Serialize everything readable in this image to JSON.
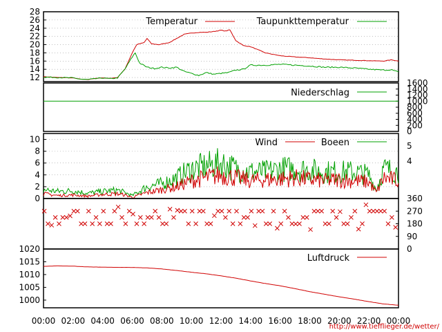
{
  "colors": {
    "red": "#d00000",
    "green": "#00a000",
    "grid": "#999999",
    "frame": "#000000"
  },
  "time_labels": [
    "00:00",
    "02:00",
    "04:00",
    "06:00",
    "08:00",
    "10:00",
    "12:00",
    "14:00",
    "16:00",
    "18:00",
    "20:00",
    "22:00",
    "00:00"
  ],
  "footer_url": "http://www.tiefflieger.de/wetter/",
  "chart_data": [
    {
      "id": "temperature",
      "type": "line",
      "x_unit": "hours",
      "xlim": [
        0,
        24
      ],
      "ylim": [
        11,
        28
      ],
      "y_ticks": [
        12,
        14,
        16,
        18,
        20,
        22,
        24,
        26,
        28
      ],
      "grid": true,
      "legend_position": "top",
      "series": [
        {
          "name": "Temperatur",
          "color": "#d00000",
          "x": [
            0,
            1,
            2,
            2.5,
            3,
            3.5,
            4,
            4.5,
            5,
            5.5,
            6,
            6.3,
            6.8,
            7,
            7.3,
            7.8,
            8.5,
            9,
            9.5,
            10,
            10.5,
            11,
            11.5,
            12,
            12.3,
            12.6,
            13,
            13.5,
            14,
            15,
            16,
            17,
            18,
            19,
            20,
            21,
            22,
            23,
            23.5,
            24
          ],
          "y": [
            12.2,
            12,
            11.9,
            11.6,
            11.5,
            11.8,
            11.9,
            11.8,
            12,
            14,
            18,
            20,
            20.5,
            21.5,
            20.2,
            20,
            20.5,
            21.5,
            22.5,
            22.8,
            23,
            23,
            23.2,
            23.5,
            23.3,
            23.6,
            21,
            19.8,
            19.5,
            18,
            17.3,
            17,
            16.8,
            16.5,
            16.3,
            16.2,
            16.1,
            16,
            16.3,
            16
          ]
        },
        {
          "name": "Taupunkttemperatur",
          "color": "#00a000",
          "x": [
            0,
            1,
            2,
            2.5,
            3,
            3.5,
            4,
            4.5,
            5,
            5.5,
            6,
            6.2,
            6.5,
            7,
            7.5,
            8,
            8.5,
            9,
            9.5,
            10,
            10.5,
            11,
            11.5,
            12,
            12.5,
            13,
            13.5,
            14,
            15,
            16,
            17,
            18,
            19,
            20,
            21,
            22,
            23,
            23.5,
            24
          ],
          "y": [
            12.1,
            12,
            11.9,
            11.6,
            11.5,
            11.7,
            11.9,
            11.7,
            11.9,
            14,
            17,
            18,
            15.5,
            14.5,
            14.2,
            14.5,
            14.3,
            14.5,
            13.5,
            13,
            12.5,
            13.2,
            12.8,
            13,
            13.2,
            13.8,
            14,
            15,
            15,
            15.2,
            15,
            14.8,
            14.5,
            14.5,
            14.3,
            14,
            13.8,
            13.9,
            13.3
          ]
        }
      ]
    },
    {
      "id": "precipitation",
      "type": "line",
      "xlim": [
        0,
        24
      ],
      "ylim": [
        0,
        1600
      ],
      "y_ticks": [
        0,
        200,
        400,
        600,
        800,
        1000,
        1200,
        1400,
        1600
      ],
      "y_axis_side": "right",
      "grid": false,
      "series": [
        {
          "name": "Niederschlag",
          "color": "#00a000",
          "x": [
            0,
            24
          ],
          "y": [
            1000,
            1000
          ]
        }
      ]
    },
    {
      "id": "wind",
      "type": "line",
      "xlim": [
        0,
        24
      ],
      "ylim": [
        0,
        11
      ],
      "y_ticks": [
        0,
        2,
        4,
        6,
        8,
        10
      ],
      "y_ticks_right": [
        4,
        5
      ],
      "grid": true,
      "series": [
        {
          "name": "Wind",
          "color": "#d00000",
          "x": [
            0,
            1,
            2,
            3,
            4,
            5,
            5.5,
            6,
            7,
            8,
            9,
            10,
            11,
            12,
            13,
            14,
            15,
            16,
            17,
            18,
            19,
            20,
            21,
            22,
            22.5,
            23,
            24
          ],
          "y": [
            0.8,
            0.5,
            0.6,
            0.4,
            0.7,
            0.8,
            0.6,
            0.2,
            1,
            1.5,
            2,
            3,
            3.5,
            4,
            3.5,
            3,
            3.2,
            3.3,
            3.5,
            3.2,
            3,
            3.2,
            3,
            2.8,
            1,
            3.5,
            3
          ]
        },
        {
          "name": "Boeen",
          "color": "#00a000",
          "x": [
            0,
            1,
            2,
            3,
            4,
            5,
            5.5,
            6,
            7,
            8,
            9,
            10,
            11,
            12,
            13,
            14,
            15,
            16,
            17,
            18,
            19,
            20,
            21,
            22,
            22.5,
            23,
            24
          ],
          "y": [
            1.5,
            1.2,
            1.3,
            0.9,
            1.2,
            1.4,
            1,
            0.5,
            2,
            2.5,
            3.5,
            5,
            5.5,
            6,
            5,
            4.5,
            4.5,
            5,
            5,
            4.8,
            4.5,
            4.5,
            4.5,
            4,
            1.5,
            5,
            4.5
          ]
        }
      ]
    },
    {
      "id": "wind_direction",
      "type": "scatter",
      "marker": "x",
      "color": "#d00000",
      "xlim": [
        0,
        24
      ],
      "ylim": [
        0,
        360
      ],
      "y_ticks_right": [
        0,
        90,
        180,
        270,
        360
      ],
      "typical_values_deg": [
        180,
        225,
        270
      ],
      "grid": false
    },
    {
      "id": "pressure",
      "type": "line",
      "xlim": [
        0,
        24
      ],
      "ylim": [
        997,
        1020
      ],
      "y_ticks": [
        1000,
        1005,
        1010,
        1015,
        1020
      ],
      "grid": false,
      "series": [
        {
          "name": "Luftdruck",
          "color": "#d00000",
          "x": [
            0,
            1,
            2,
            3,
            4,
            5,
            6,
            7,
            8,
            9,
            10,
            11,
            12,
            13,
            14,
            15,
            16,
            17,
            18,
            19,
            20,
            21,
            22,
            23,
            24
          ],
          "y": [
            1013.2,
            1013.4,
            1013.3,
            1013,
            1012.9,
            1012.8,
            1012.8,
            1012.6,
            1012.2,
            1011.6,
            1010.9,
            1010.3,
            1009.5,
            1008.6,
            1007.5,
            1006.5,
            1005.6,
            1004.5,
            1003.3,
            1002.3,
            1001.3,
            1000.4,
            999.4,
            998.5,
            998
          ]
        }
      ]
    }
  ]
}
